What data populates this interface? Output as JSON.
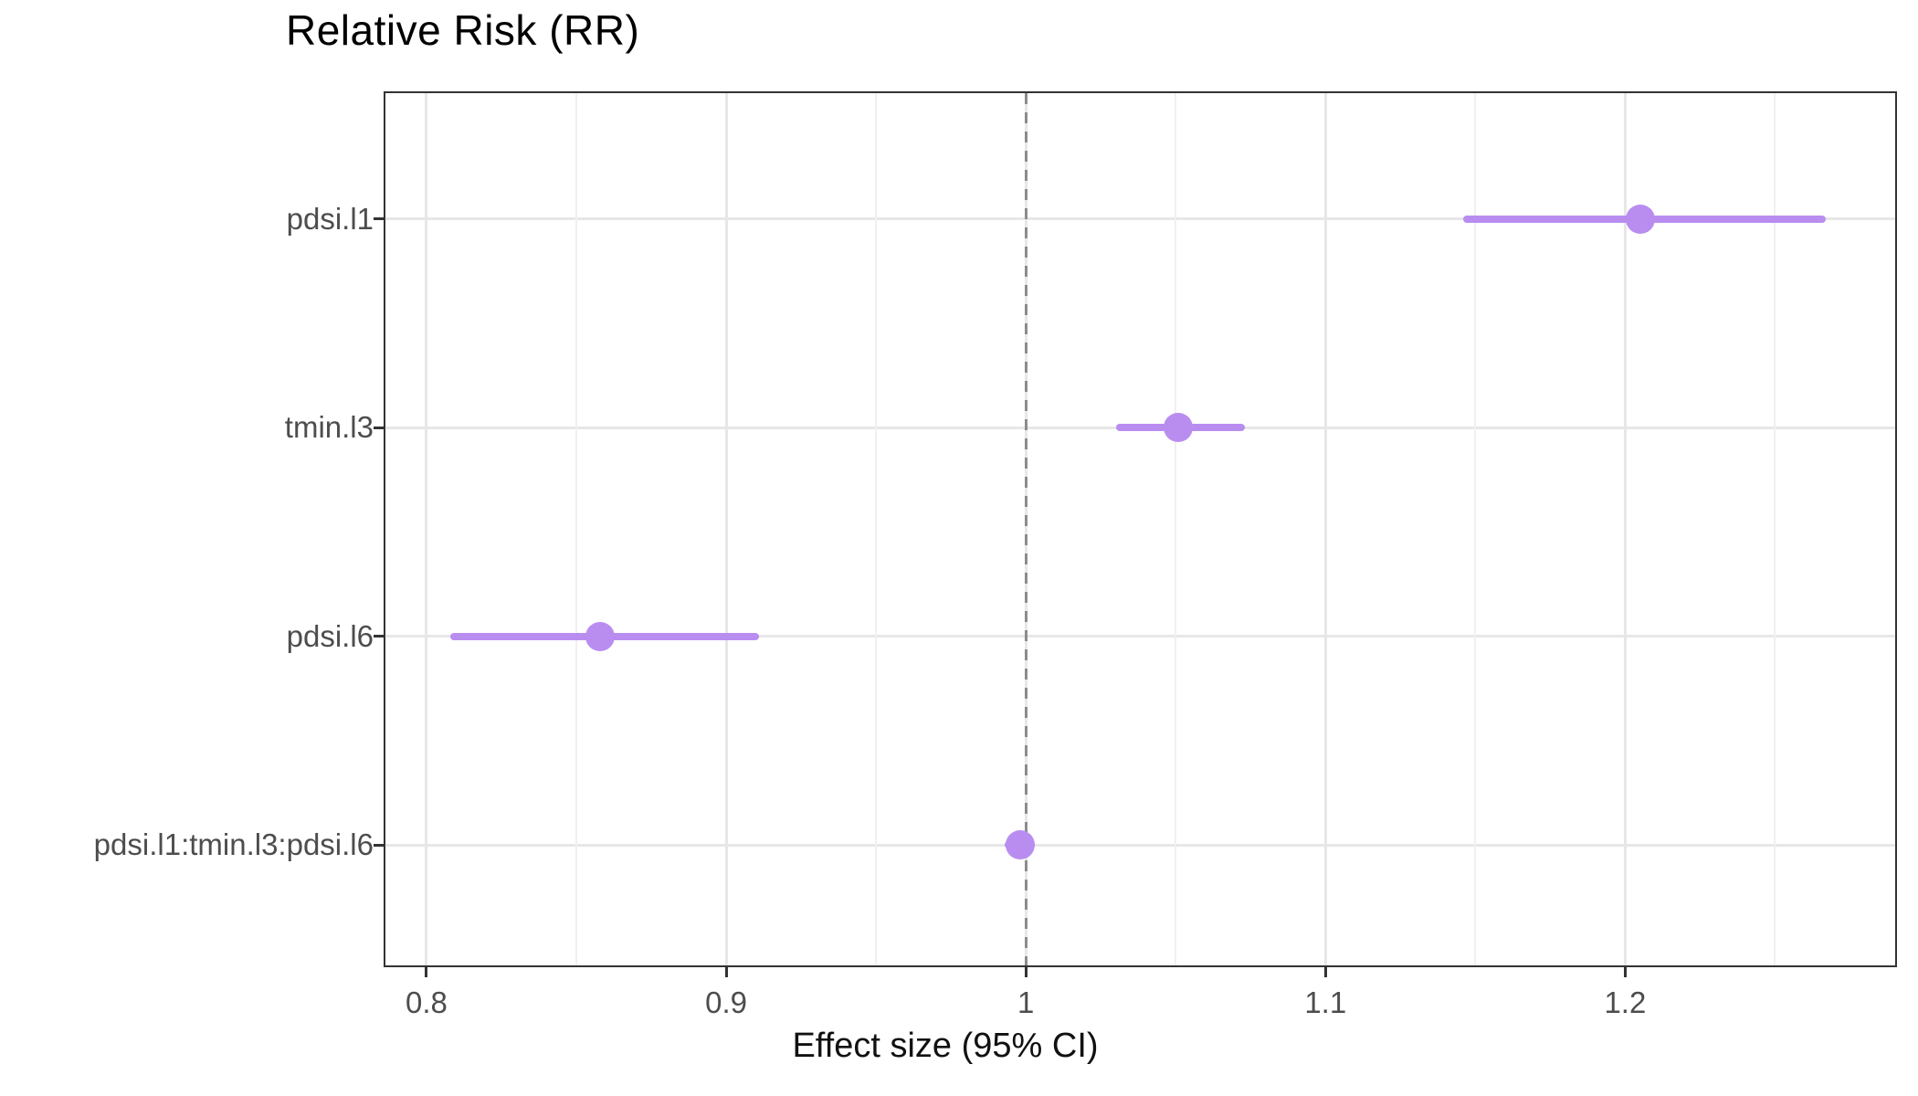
{
  "title": "Relative Risk (RR)",
  "chart_data": {
    "type": "scatter",
    "subtype": "forest-dot-whisker",
    "title": "Relative Risk (RR)",
    "xlabel": "Effect size (95% CI)",
    "ylabel": "",
    "categories": [
      "pdsi.l1",
      "tmin.l3",
      "pdsi.l6",
      "pdsi.l1:tmin.l3:pdsi.l6"
    ],
    "estimates": [
      1.205,
      1.051,
      0.858,
      0.998
    ],
    "ci_low": [
      1.146,
      1.03,
      0.808,
      0.993
    ],
    "ci_high": [
      1.267,
      1.073,
      0.911,
      1.003
    ],
    "reference_line_x": 1,
    "x_ticks": [
      0.8,
      0.9,
      1,
      1.1,
      1.2
    ],
    "x_tick_labels": [
      "0.8",
      "0.9",
      "1",
      "1.1",
      "1.2"
    ],
    "x_minor_ticks": [
      0.85,
      0.95,
      1.05,
      1.15,
      1.25
    ],
    "xlim": [
      0.7863,
      1.2901
    ],
    "grid": true,
    "legend": false,
    "colors": {
      "point": "#b98df0",
      "ci_line": "#b98df0",
      "reference_line": "#8c8c8c",
      "grid_major": "#e7e7e7",
      "grid_minor": "#f0f0f0",
      "panel_border": "#333333",
      "axis_text": "#4d4d4d",
      "title_text": "#000000"
    }
  }
}
